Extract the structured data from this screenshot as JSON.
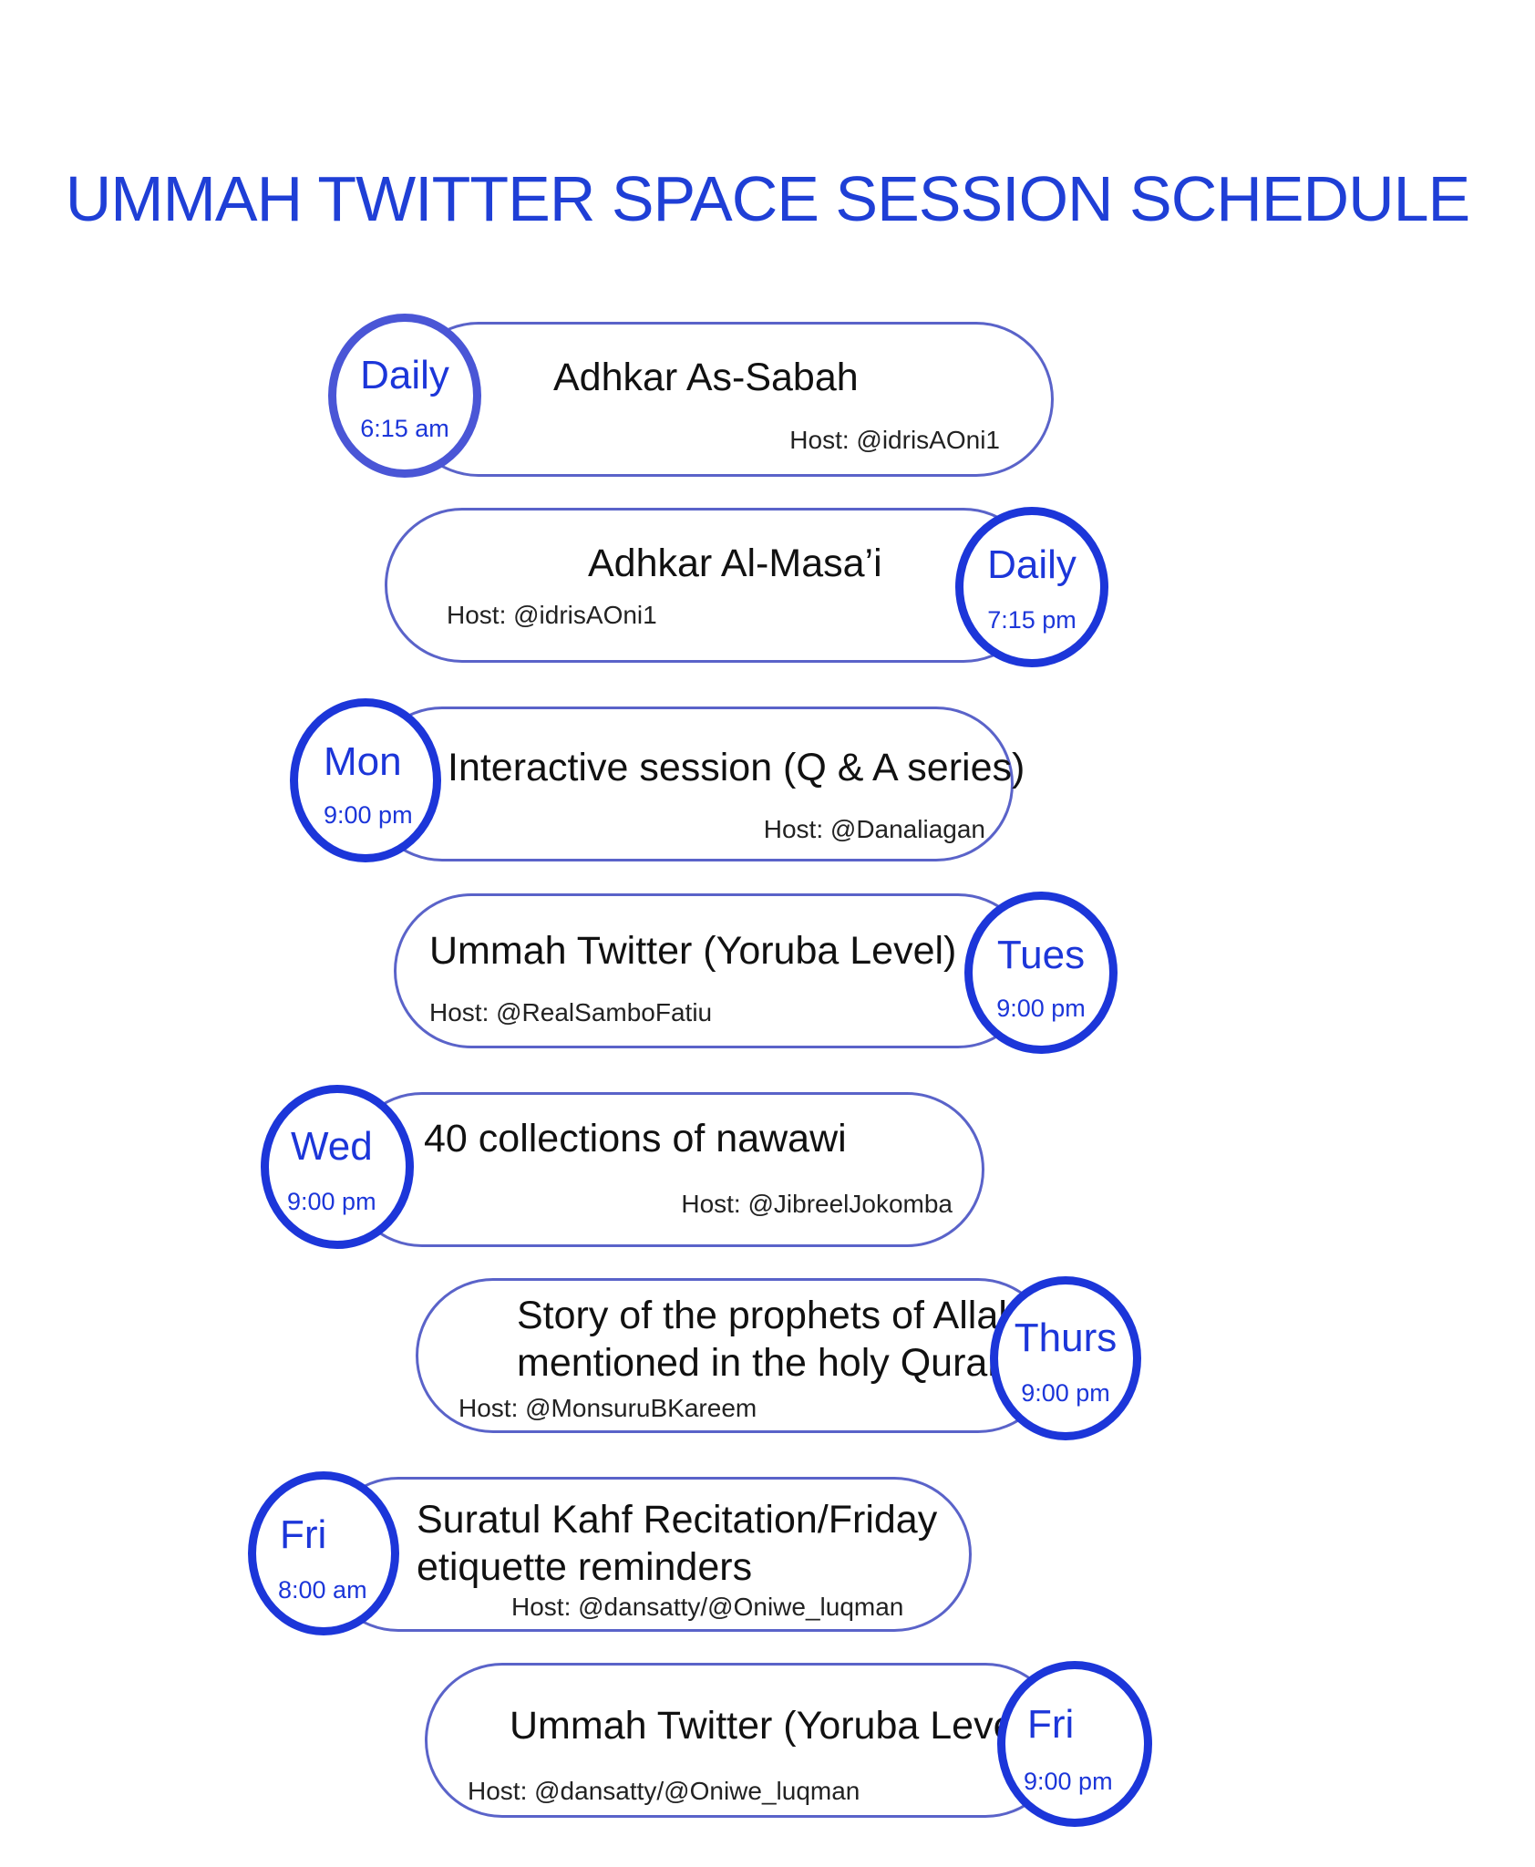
{
  "title": "UMMAH TWITTER SPACE SESSION SCHEDULE",
  "colors": {
    "accent": "#1c36d9",
    "card_border": "#5a63c9",
    "title": "#1f3fd6"
  },
  "sessions": [
    {
      "day": "Daily",
      "time": "6:15 am",
      "name": "Adhkar As-Sabah",
      "host": "Host: @idrisAOni1"
    },
    {
      "day": "Daily",
      "time": "7:15 pm",
      "name": "Adhkar Al-Masa’i",
      "host": "Host: @idrisAOni1"
    },
    {
      "day": "Mon",
      "time": "9:00 pm",
      "name": "Interactive session (Q & A series)",
      "host": "Host: @Danaliagan"
    },
    {
      "day": "Tues",
      "time": "9:00 pm",
      "name": "Ummah Twitter (Yoruba Level)",
      "host": "Host: @RealSamboFatiu"
    },
    {
      "day": "Wed",
      "time": "9:00 pm",
      "name": "40 collections of nawawi",
      "host": "Host: @JibreelJokomba"
    },
    {
      "day": "Thurs",
      "time": "9:00 pm",
      "name_line1": "Story of the prophets of Allah",
      "name_line2": "mentioned in the holy Quran",
      "host": "Host: @MonsuruBKareem"
    },
    {
      "day": "Fri",
      "time": "8:00 am",
      "name_line1": "Suratul Kahf Recitation/Friday",
      "name_line2": "etiquette reminders",
      "host": "Host: @dansatty/@Oniwe_luqman"
    },
    {
      "day": "Fri",
      "time": "9:00 pm",
      "name": "Ummah Twitter (Yoruba Level)",
      "host": "Host: @dansatty/@Oniwe_luqman"
    }
  ]
}
